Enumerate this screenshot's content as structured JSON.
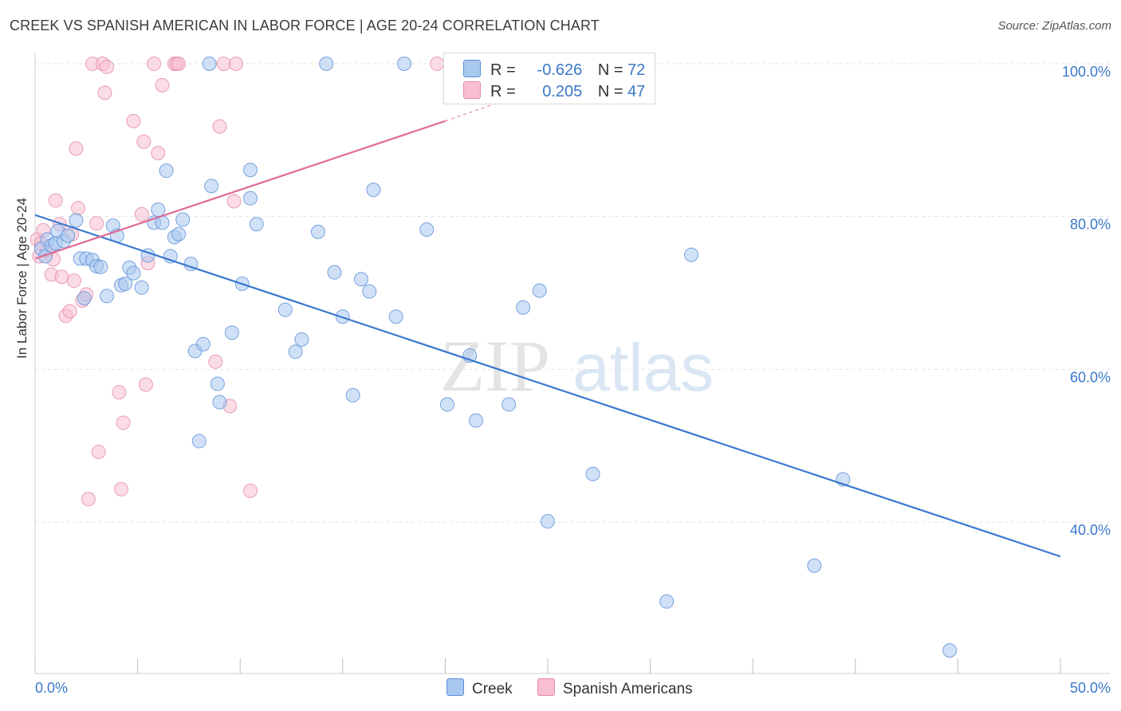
{
  "title": "CREEK VS SPANISH AMERICAN IN LABOR FORCE | AGE 20-24 CORRELATION CHART",
  "source": "Source: ZipAtlas.com",
  "watermark": {
    "zip": "ZIP",
    "atlas": "atlas"
  },
  "legend": {
    "r_label": "R =",
    "n_label": "N =",
    "series": [
      {
        "name": "Creek",
        "r": "-0.626",
        "n": "72",
        "fill": "#a9c8f0",
        "stroke": "#5b8fd6"
      },
      {
        "name": "Spanish Americans",
        "r": "0.205",
        "n": "47",
        "fill": "#f7bfd0",
        "stroke": "#e58aa8"
      }
    ]
  },
  "chart_data": {
    "type": "scatter",
    "title": "CREEK VS SPANISH AMERICAN IN LABOR FORCE | AGE 20-24 CORRELATION CHART",
    "xlabel": "",
    "ylabel": "In Labor Force | Age 20-24",
    "xlim": [
      0,
      50
    ],
    "ylim": [
      20,
      104
    ],
    "x_tick_labels": [
      "0.0%",
      "50.0%"
    ],
    "y_ticks": [
      40,
      60,
      80,
      100
    ],
    "y_tick_labels": [
      "40.0%",
      "60.0%",
      "80.0%",
      "100.0%"
    ],
    "grid": true,
    "series": [
      {
        "name": "Creek",
        "color": "#5b8fd6",
        "fill": "#a9c8f0",
        "trend": {
          "x": [
            0,
            50
          ],
          "y": [
            80.2,
            35.5
          ],
          "color": "#3a78d0"
        },
        "points": [
          [
            0.3,
            75.8
          ],
          [
            0.5,
            74.8
          ],
          [
            0.6,
            77.0
          ],
          [
            0.8,
            76.2
          ],
          [
            1.0,
            76.5
          ],
          [
            1.1,
            78.1
          ],
          [
            1.4,
            76.8
          ],
          [
            1.6,
            77.5
          ],
          [
            2.0,
            79.5
          ],
          [
            2.2,
            74.5
          ],
          [
            2.4,
            69.3
          ],
          [
            2.5,
            74.5
          ],
          [
            2.8,
            74.3
          ],
          [
            3.0,
            73.5
          ],
          [
            3.2,
            73.4
          ],
          [
            3.5,
            69.6
          ],
          [
            3.8,
            78.8
          ],
          [
            4.0,
            77.5
          ],
          [
            4.2,
            71.0
          ],
          [
            4.4,
            71.2
          ],
          [
            4.6,
            73.3
          ],
          [
            4.8,
            72.6
          ],
          [
            5.2,
            70.7
          ],
          [
            5.5,
            74.9
          ],
          [
            5.8,
            79.2
          ],
          [
            6.0,
            80.9
          ],
          [
            6.2,
            79.2
          ],
          [
            6.4,
            86.0
          ],
          [
            6.6,
            74.8
          ],
          [
            6.8,
            77.3
          ],
          [
            7.0,
            77.7
          ],
          [
            7.2,
            79.6
          ],
          [
            7.6,
            73.8
          ],
          [
            7.8,
            62.4
          ],
          [
            8.0,
            50.6
          ],
          [
            8.2,
            63.3
          ],
          [
            8.5,
            100.0
          ],
          [
            8.6,
            84.0
          ],
          [
            8.9,
            58.1
          ],
          [
            9.0,
            55.7
          ],
          [
            9.6,
            64.8
          ],
          [
            10.1,
            71.2
          ],
          [
            10.5,
            86.1
          ],
          [
            10.5,
            82.4
          ],
          [
            10.8,
            79.0
          ],
          [
            12.2,
            67.8
          ],
          [
            12.7,
            62.3
          ],
          [
            13.0,
            63.9
          ],
          [
            13.8,
            78.0
          ],
          [
            14.2,
            100.0
          ],
          [
            14.6,
            72.7
          ],
          [
            15.0,
            66.9
          ],
          [
            15.5,
            56.6
          ],
          [
            15.9,
            71.8
          ],
          [
            16.3,
            70.2
          ],
          [
            16.5,
            83.5
          ],
          [
            17.6,
            66.9
          ],
          [
            18.0,
            100.0
          ],
          [
            19.1,
            78.3
          ],
          [
            20.1,
            55.4
          ],
          [
            21.2,
            61.8
          ],
          [
            21.5,
            53.3
          ],
          [
            23.1,
            55.4
          ],
          [
            23.8,
            68.1
          ],
          [
            24.6,
            70.3
          ],
          [
            25.0,
            40.1
          ],
          [
            27.2,
            46.3
          ],
          [
            30.8,
            29.6
          ],
          [
            32.0,
            75.0
          ],
          [
            38.0,
            34.3
          ],
          [
            39.4,
            45.6
          ],
          [
            44.6,
            23.2
          ]
        ]
      },
      {
        "name": "Spanish Americans",
        "color": "#e58aa8",
        "fill": "#f7bfd0",
        "trend": {
          "x": [
            0,
            20
          ],
          "y": [
            74.5,
            92.5
          ],
          "x_dashed_end": 23,
          "y_dashed_end": 95.3,
          "color": "#e06b95"
        },
        "points": [
          [
            0.1,
            77.0
          ],
          [
            0.2,
            74.8
          ],
          [
            0.3,
            76.5
          ],
          [
            0.4,
            78.2
          ],
          [
            0.6,
            75.5
          ],
          [
            0.8,
            72.4
          ],
          [
            0.9,
            74.4
          ],
          [
            1.0,
            82.1
          ],
          [
            1.2,
            79.0
          ],
          [
            1.3,
            72.1
          ],
          [
            1.5,
            67.0
          ],
          [
            1.7,
            67.6
          ],
          [
            1.8,
            77.7
          ],
          [
            1.9,
            71.6
          ],
          [
            2.0,
            88.9
          ],
          [
            2.1,
            81.1
          ],
          [
            2.3,
            69.0
          ],
          [
            2.5,
            69.8
          ],
          [
            2.6,
            43.0
          ],
          [
            2.8,
            100.0
          ],
          [
            3.0,
            79.1
          ],
          [
            3.1,
            49.2
          ],
          [
            3.3,
            100.0
          ],
          [
            3.4,
            96.2
          ],
          [
            3.5,
            99.6
          ],
          [
            4.1,
            57.0
          ],
          [
            4.2,
            44.3
          ],
          [
            4.3,
            53.0
          ],
          [
            4.8,
            92.5
          ],
          [
            5.2,
            80.3
          ],
          [
            5.3,
            89.8
          ],
          [
            5.4,
            58.0
          ],
          [
            5.5,
            73.9
          ],
          [
            5.8,
            100.0
          ],
          [
            6.0,
            88.3
          ],
          [
            6.2,
            97.2
          ],
          [
            6.8,
            100.0
          ],
          [
            6.9,
            100.0
          ],
          [
            7.0,
            100.0
          ],
          [
            8.8,
            61.0
          ],
          [
            9.0,
            91.8
          ],
          [
            9.2,
            100.0
          ],
          [
            9.5,
            55.2
          ],
          [
            9.7,
            82.0
          ],
          [
            9.8,
            100.0
          ],
          [
            10.5,
            44.1
          ],
          [
            19.6,
            100.0
          ]
        ]
      }
    ]
  }
}
